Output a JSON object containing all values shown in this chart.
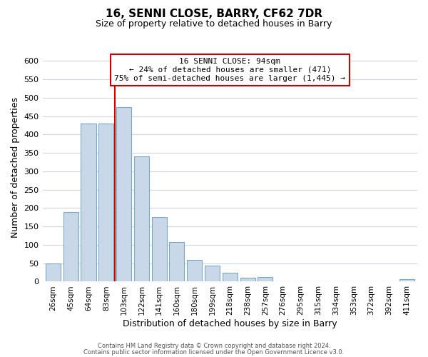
{
  "title": "16, SENNI CLOSE, BARRY, CF62 7DR",
  "subtitle": "Size of property relative to detached houses in Barry",
  "xlabel": "Distribution of detached houses by size in Barry",
  "ylabel": "Number of detached properties",
  "bar_labels": [
    "26sqm",
    "45sqm",
    "64sqm",
    "83sqm",
    "103sqm",
    "122sqm",
    "141sqm",
    "160sqm",
    "180sqm",
    "199sqm",
    "218sqm",
    "238sqm",
    "257sqm",
    "276sqm",
    "295sqm",
    "315sqm",
    "334sqm",
    "353sqm",
    "372sqm",
    "392sqm",
    "411sqm"
  ],
  "bar_values": [
    50,
    190,
    430,
    430,
    475,
    340,
    175,
    107,
    60,
    44,
    25,
    10,
    12,
    0,
    0,
    0,
    0,
    0,
    0,
    0,
    6
  ],
  "bar_color": "#c8d8e8",
  "bar_edge_color": "#7ba8c8",
  "vline_color": "#cc0000",
  "annotation_line1": "16 SENNI CLOSE: 94sqm",
  "annotation_line2": "← 24% of detached houses are smaller (471)",
  "annotation_line3": "75% of semi-detached houses are larger (1,445) →",
  "annotation_box_color": "#ffffff",
  "annotation_box_edge": "#cc0000",
  "ylim": [
    0,
    620
  ],
  "yticks": [
    0,
    50,
    100,
    150,
    200,
    250,
    300,
    350,
    400,
    450,
    500,
    550,
    600
  ],
  "footer_line1": "Contains HM Land Registry data © Crown copyright and database right 2024.",
  "footer_line2": "Contains public sector information licensed under the Open Government Licence v3.0.",
  "background_color": "#ffffff",
  "grid_color": "#cdd8e3"
}
